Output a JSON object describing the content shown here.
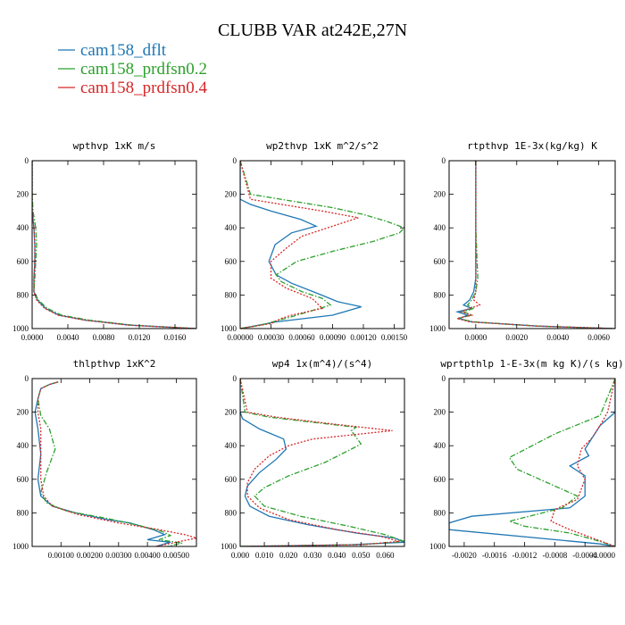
{
  "title": "CLUBB VAR at242E,27N",
  "legend": [
    {
      "label": "cam158_dflt",
      "color": "#1f77b4",
      "dash": "solid"
    },
    {
      "label": "cam158_prdfsn0.2",
      "color": "#2ca02c",
      "dash": "dashdot"
    },
    {
      "label": "cam158_prdfsn0.4",
      "color": "#d62728",
      "dash": "dot"
    }
  ],
  "chart_data": [
    {
      "type": "line",
      "title": "wpthvp  1xK m/s",
      "xlim": [
        0,
        0.0184
      ],
      "ylim": [
        1000,
        0
      ],
      "xticks": [
        0,
        0.004,
        0.008,
        0.012,
        0.016
      ],
      "xtick_labels": [
        "0.0000",
        "0.0040",
        "0.0080",
        "0.0120",
        "0.0160"
      ],
      "yticks": [
        0,
        200,
        400,
        600,
        800,
        1000
      ],
      "series": [
        {
          "name": "cam158_dflt",
          "x": [
            0,
            0,
            0,
            0.0002,
            0.0003,
            0.0003,
            0.0002,
            0.0002,
            0.0006,
            0.0015,
            0.003,
            0.006,
            0.011,
            0.0184
          ],
          "y": [
            0,
            200,
            300,
            400,
            500,
            600,
            700,
            780,
            830,
            880,
            920,
            950,
            980,
            1000
          ]
        },
        {
          "name": "cam158_prdfsn0.2",
          "x": [
            0,
            0,
            0.0001,
            0.0004,
            0.0005,
            0.0004,
            0.0003,
            0.0002,
            0.0007,
            0.0017,
            0.0033,
            0.0064,
            0.0113,
            0.0184
          ],
          "y": [
            0,
            200,
            300,
            400,
            500,
            600,
            700,
            780,
            830,
            880,
            920,
            950,
            980,
            1000
          ]
        },
        {
          "name": "cam158_prdfsn0.4",
          "x": [
            0,
            0,
            0,
            0.0002,
            0.0003,
            0.0003,
            0.0002,
            0.0002,
            0.0005,
            0.0014,
            0.0029,
            0.0059,
            0.0108,
            0.0184
          ],
          "y": [
            0,
            200,
            300,
            400,
            500,
            600,
            700,
            780,
            830,
            880,
            920,
            950,
            980,
            1000
          ]
        }
      ]
    },
    {
      "type": "line",
      "title": "wp2thvp  1xK m^2/s^2",
      "xlim": [
        0,
        0.0016
      ],
      "ylim": [
        1000,
        0
      ],
      "xticks": [
        0,
        0.0003,
        0.0006,
        0.0009,
        0.0012,
        0.0015
      ],
      "xtick_labels": [
        "0.00000",
        "0.00030",
        "0.00060",
        "0.00090",
        "0.00120",
        "0.00150"
      ],
      "yticks": [
        0,
        200,
        400,
        600,
        800,
        1000
      ],
      "series": [
        {
          "name": "cam158_dflt",
          "x": [
            0,
            0,
            0.0001,
            0.0003,
            0.00059,
            0.00074,
            0.0005,
            0.00034,
            0.00028,
            0.00035,
            0.0005,
            0.00075,
            0.00095,
            0.00118,
            0.0009,
            0.00035,
            0
          ],
          "y": [
            0,
            230,
            260,
            300,
            350,
            390,
            430,
            500,
            600,
            680,
            730,
            790,
            840,
            870,
            920,
            960,
            1000
          ]
        },
        {
          "name": "cam158_prdfsn0.2",
          "x": [
            0,
            0.0001,
            0.0005,
            0.0009,
            0.0012,
            0.00142,
            0.0016,
            0.00155,
            0.0013,
            0.0009,
            0.00055,
            0.00035,
            0.0004,
            0.0006,
            0.0008,
            0.00088,
            0.0005,
            0.0002,
            0
          ],
          "y": [
            0,
            200,
            240,
            280,
            320,
            360,
            400,
            430,
            480,
            540,
            600,
            680,
            720,
            780,
            820,
            860,
            930,
            980,
            1000
          ]
        },
        {
          "name": "cam158_prdfsn0.4",
          "x": [
            0,
            0.0001,
            0.0004,
            0.0008,
            0.00115,
            0.00095,
            0.00075,
            0.0006,
            0.00045,
            0.0003,
            0.0003,
            0.00045,
            0.0007,
            0.0008,
            0.0005,
            0.0004,
            0.0003,
            0.0001,
            0
          ],
          "y": [
            0,
            230,
            260,
            300,
            340,
            380,
            420,
            450,
            520,
            600,
            700,
            760,
            820,
            880,
            920,
            940,
            970,
            990,
            1000
          ]
        }
      ]
    },
    {
      "type": "line",
      "title": "rtpthvp  1E-3x(kg/kg) K",
      "xlim": [
        -0.0013,
        0.0068
      ],
      "ylim": [
        1000,
        0
      ],
      "xticks": [
        0,
        0.002,
        0.004,
        0.006
      ],
      "xtick_labels": [
        "0.0000",
        "0.0020",
        "0.0040",
        "0.0060"
      ],
      "yticks": [
        0,
        200,
        400,
        600,
        800,
        1000
      ],
      "series": [
        {
          "name": "cam158_dflt",
          "x": [
            0,
            0,
            0,
            0,
            -0.0001,
            -0.0003,
            -0.0006,
            -0.0002,
            -0.0009,
            -0.0004,
            -0.0008,
            -0.0002,
            0.003,
            0.0068
          ],
          "y": [
            0,
            200,
            400,
            700,
            780,
            830,
            860,
            880,
            900,
            920,
            940,
            960,
            985,
            1000
          ]
        },
        {
          "name": "cam158_prdfsn0.2",
          "x": [
            0,
            0,
            0,
            0.0001,
            0,
            -0.0002,
            -0.0004,
            -0.0001,
            -0.0006,
            -0.0002,
            -0.0009,
            -0.0001,
            0.003,
            0.0068
          ],
          "y": [
            0,
            200,
            400,
            700,
            780,
            830,
            860,
            880,
            900,
            920,
            940,
            960,
            985,
            1000
          ]
        },
        {
          "name": "cam158_prdfsn0.4",
          "x": [
            0,
            0,
            0,
            0,
            0,
            -0.0001,
            0.0002,
            -0.0003,
            -0.0007,
            -0.0002,
            -0.0009,
            -0.0003,
            0.003,
            0.0068
          ],
          "y": [
            0,
            200,
            400,
            700,
            780,
            830,
            860,
            880,
            900,
            920,
            940,
            960,
            985,
            1000
          ]
        }
      ]
    },
    {
      "type": "line",
      "title": "thlpthvp  1xK^2",
      "xlim": [
        0,
        0.0057
      ],
      "ylim": [
        1000,
        0
      ],
      "xticks": [
        0.001,
        0.002,
        0.003,
        0.004,
        0.005
      ],
      "xtick_labels": [
        "0.00100",
        "0.00200",
        "0.00300",
        "0.00400",
        "0.00500"
      ],
      "yticks": [
        0,
        200,
        400,
        600,
        800,
        1000
      ],
      "series": [
        {
          "name": "cam158_dflt",
          "x": [
            0.0009,
            0.0006,
            0.0003,
            0.0002,
            0.0001,
            0.0002,
            0.0003,
            0.0002,
            0.0003,
            0.0007,
            0.0015,
            0.0026,
            0.0034,
            0.0042,
            0.0046,
            0.004,
            0.0048,
            0.0043
          ],
          "y": [
            20,
            35,
            60,
            120,
            200,
            300,
            450,
            600,
            700,
            760,
            800,
            840,
            860,
            900,
            930,
            960,
            975,
            1000
          ]
        },
        {
          "name": "cam158_prdfsn0.2",
          "x": [
            0.0009,
            0.0006,
            0.0003,
            0.0002,
            0.0003,
            0.0006,
            0.0008,
            0.0005,
            0.0003,
            0.0005,
            0.0012,
            0.0025,
            0.0036,
            0.0045,
            0.0048,
            0.0044,
            0.0052,
            0.0047
          ],
          "y": [
            20,
            35,
            60,
            120,
            220,
            300,
            420,
            560,
            680,
            740,
            790,
            830,
            870,
            910,
            935,
            960,
            980,
            1000
          ]
        },
        {
          "name": "cam158_prdfsn0.4",
          "x": [
            0.0009,
            0.0006,
            0.0003,
            0.0002,
            0.0002,
            0.0003,
            0.0003,
            0.0003,
            0.0004,
            0.0007,
            0.0016,
            0.003,
            0.0044,
            0.0053,
            0.0057,
            0.005,
            0.0043
          ],
          "y": [
            20,
            35,
            60,
            120,
            200,
            300,
            450,
            600,
            700,
            760,
            810,
            860,
            900,
            930,
            950,
            975,
            1000
          ]
        }
      ]
    },
    {
      "type": "line",
      "title": "wp4  1x(m^4)/(s^4)",
      "xlim": [
        0,
        0.068
      ],
      "ylim": [
        1000,
        0
      ],
      "xticks": [
        0,
        0.01,
        0.02,
        0.03,
        0.04,
        0.05,
        0.06
      ],
      "xtick_labels": [
        "0.000",
        "0.010",
        "0.020",
        "0.030",
        "0.040",
        "0.050",
        "0.060"
      ],
      "yticks": [
        0,
        200,
        400,
        600,
        800,
        1000
      ],
      "series": [
        {
          "name": "cam158_dflt",
          "x": [
            0,
            0,
            0.001,
            0.008,
            0.018,
            0.019,
            0.015,
            0.008,
            0.003,
            0.002,
            0.004,
            0.012,
            0.028,
            0.048,
            0.064,
            0.068,
            0.045,
            0
          ],
          "y": [
            0,
            200,
            240,
            300,
            360,
            420,
            480,
            560,
            640,
            700,
            760,
            820,
            870,
            920,
            950,
            975,
            990,
            1000
          ]
        },
        {
          "name": "cam158_prdfsn0.2",
          "x": [
            0,
            0.002,
            0.012,
            0.03,
            0.048,
            0.046,
            0.05,
            0.046,
            0.035,
            0.02,
            0.01,
            0.006,
            0.01,
            0.025,
            0.045,
            0.06,
            0.068,
            0.05,
            0
          ],
          "y": [
            0,
            200,
            230,
            260,
            290,
            310,
            390,
            420,
            500,
            580,
            650,
            700,
            760,
            820,
            880,
            930,
            970,
            990,
            1000
          ]
        },
        {
          "name": "cam158_prdfsn0.4",
          "x": [
            0,
            0.003,
            0.015,
            0.038,
            0.063,
            0.05,
            0.03,
            0.02,
            0.012,
            0.006,
            0.003,
            0.003,
            0.008,
            0.02,
            0.04,
            0.058,
            0.066,
            0.05,
            0
          ],
          "y": [
            0,
            200,
            230,
            270,
            310,
            330,
            360,
            400,
            460,
            540,
            620,
            700,
            770,
            840,
            900,
            940,
            970,
            990,
            1000
          ]
        }
      ]
    },
    {
      "type": "line",
      "title": "wprtpthlp  1-E-3x(m kg K)/(s kg)",
      "xlim": [
        -0.0022,
        0
      ],
      "ylim": [
        1000,
        0
      ],
      "xticks": [
        -0.002,
        -0.0016,
        -0.0012,
        -0.0008,
        -0.0004,
        0
      ],
      "xtick_labels": [
        "-0.0020",
        "-0.0016",
        "-0.0012",
        "-0.0008",
        "-0.0004",
        "-0.0000"
      ],
      "yticks": [
        0,
        200,
        400,
        600,
        800,
        1000
      ],
      "series": [
        {
          "name": "cam158_dflt",
          "x": [
            0,
            0,
            -0.0002,
            -0.0003,
            -0.0004,
            -0.00035,
            -0.0006,
            -0.0004,
            -0.0004,
            -0.0006,
            -0.0019,
            -0.0022,
            -0.0022,
            -0.0002,
            0
          ],
          "y": [
            0,
            200,
            280,
            350,
            420,
            460,
            520,
            580,
            700,
            770,
            820,
            860,
            900,
            985,
            1000
          ]
        },
        {
          "name": "cam158_prdfsn0.2",
          "x": [
            0,
            -0.0002,
            -0.0008,
            -0.0014,
            -0.0013,
            -0.0009,
            -0.0005,
            -0.0007,
            -0.0014,
            -0.0012,
            -0.0006,
            -0.0002,
            0
          ],
          "y": [
            0,
            220,
            330,
            470,
            540,
            620,
            700,
            770,
            850,
            880,
            920,
            970,
            1000
          ]
        },
        {
          "name": "cam158_prdfsn0.4",
          "x": [
            0,
            -0.0001,
            -0.0002,
            -0.0003,
            -0.00045,
            -0.0005,
            -0.0004,
            -0.0005,
            -0.0008,
            -0.00085,
            -0.0006,
            -0.0003,
            0
          ],
          "y": [
            0,
            200,
            280,
            350,
            420,
            520,
            600,
            720,
            780,
            850,
            900,
            950,
            1000
          ]
        }
      ]
    }
  ]
}
